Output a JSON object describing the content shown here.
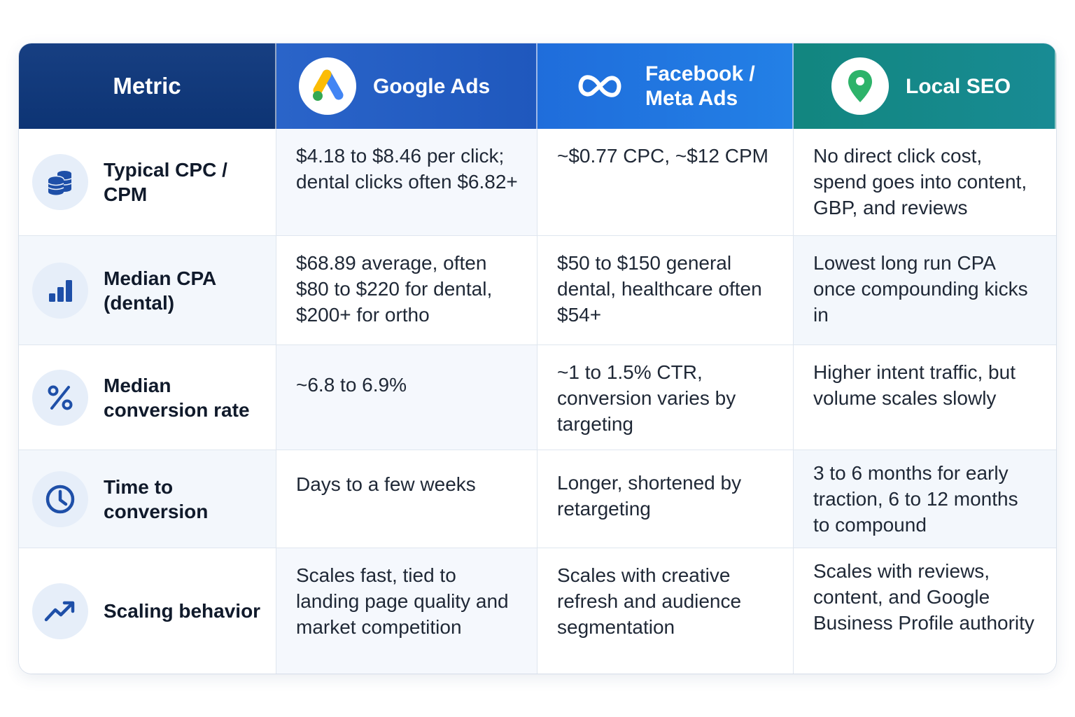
{
  "header": {
    "metric": "Metric",
    "columns": [
      {
        "label": "Google Ads",
        "icon": "google-ads-logo-icon"
      },
      {
        "label": "Facebook / Meta Ads",
        "line1": "Facebook /",
        "line2": "Meta Ads",
        "icon": "meta-logo-icon"
      },
      {
        "label": "Local SEO",
        "icon": "map-pin-icon"
      }
    ]
  },
  "rows": [
    {
      "metric": "Typical CPC / CPM",
      "icon": "coin-stack-icon",
      "google": "$4.18 to $8.46 per click; dental clicks often $6.82+",
      "meta": "~$0.77 CPC, ~$12 CPM",
      "seo": "No direct click cost, spend goes into content, GBP, and reviews"
    },
    {
      "metric": "Median CPA (dental)",
      "icon": "bar-chart-icon",
      "google": "$68.89 average, often $80 to $220 for dental, $200+ for ortho",
      "meta": "$50 to $150 general dental, healthcare often $54+",
      "seo": "Lowest long run CPA once compounding kicks in"
    },
    {
      "metric": "Median conversion rate",
      "icon": "percent-icon",
      "google": "~6.8 to 6.9%",
      "meta": "~1 to 1.5% CTR, conversion varies by targeting",
      "seo": "Higher intent traffic, but volume scales slowly"
    },
    {
      "metric": "Time to conversion",
      "icon": "clock-icon",
      "google": "Days to a few weeks",
      "meta": "Longer, shortened by retargeting",
      "seo": "3 to 6 months for early traction, 6 to 12 months to compound"
    },
    {
      "metric": "Scaling behavior",
      "icon": "trending-up-icon",
      "google": "Scales fast, tied to landing page quality and market competition",
      "meta": "Scales with creative refresh and audience segmentation",
      "seo": "Scales with reviews, content, and Google Business Profile authority"
    }
  ],
  "colors": {
    "header_metric": "#0d3474",
    "header_google": "#2361c6",
    "header_meta": "#2177e0",
    "header_seo": "#12867f",
    "icon_blue": "#1e4fa8"
  }
}
